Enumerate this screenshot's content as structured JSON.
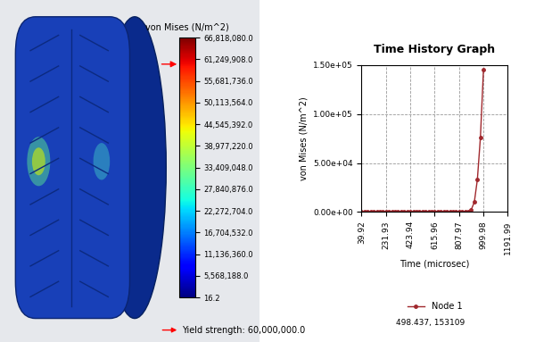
{
  "chart_data": [
    {
      "type": "image",
      "colorbar": {
        "title": "von Mises (N/m^2)",
        "range": [
          16.2,
          66818080.0
        ],
        "ticks": [
          {
            "value": 66818080.0,
            "label": "66,818,080.0"
          },
          {
            "value": 61249908.0,
            "label": "61,249,908.0"
          },
          {
            "value": 55681736.0,
            "label": "55,681,736.0"
          },
          {
            "value": 50113564.0,
            "label": "50,113,564.0"
          },
          {
            "value": 44545392.0,
            "label": "44,545,392.0"
          },
          {
            "value": 38977220.0,
            "label": "38,977,220.0"
          },
          {
            "value": 33409048.0,
            "label": "33,409,048.0"
          },
          {
            "value": 27840876.0,
            "label": "27,840,876.0"
          },
          {
            "value": 22272704.0,
            "label": "22,272,704.0"
          },
          {
            "value": 16704532.0,
            "label": "16,704,532.0"
          },
          {
            "value": 11136360.0,
            "label": "11,136,360.0"
          },
          {
            "value": 5568188.0,
            "label": "5,568,188.0"
          },
          {
            "value": 16.2,
            "label": "16.2"
          }
        ]
      },
      "annotations": [
        {
          "text": "Yield strength: 60,000,000.0",
          "value": 60000000
        }
      ]
    },
    {
      "type": "line",
      "title": "Time History Graph",
      "x_label": "Time (microsec)",
      "y_label": "von Mises (N/m^2)",
      "xlim": [
        39.92,
        1191.99
      ],
      "xticks": [
        39.92,
        231.93,
        423.94,
        615.96,
        807.97,
        999.98,
        1191.99
      ],
      "ylim": [
        0,
        150000
      ],
      "yticks": [
        {
          "value": 0,
          "label": "0.00e+00"
        },
        {
          "value": 50000,
          "label": "5.00e+04"
        },
        {
          "value": 100000,
          "label": "1.00e+05"
        },
        {
          "value": 150000,
          "label": "1.50e+05"
        }
      ],
      "grid": true,
      "legend": "upper center",
      "x": [
        39.92,
        63.92,
        87.92,
        111.92,
        135.92,
        159.92,
        183.92,
        207.92,
        231.92,
        255.92,
        279.92,
        303.92,
        327.92,
        351.92,
        375.92,
        399.92,
        423.92,
        447.92,
        471.92,
        495.92,
        519.92,
        543.92,
        567.92,
        591.92,
        615.92,
        639.92,
        663.92,
        687.92,
        711.92,
        735.92,
        759.92,
        783.92,
        807.92,
        831.92,
        855.92,
        879.92,
        903.92,
        927.92,
        951.92,
        975.92,
        999.92
      ],
      "series": [
        {
          "name": "Node 1",
          "color": "#a0282d",
          "marker": "o",
          "line_style": "solid",
          "values": [
            0,
            0,
            0,
            0,
            0,
            0,
            0,
            0,
            0,
            0,
            0,
            0,
            0,
            0,
            0,
            0,
            0,
            0,
            0,
            0,
            0,
            0,
            0,
            0,
            0,
            0,
            0,
            0,
            0,
            0,
            0,
            0,
            0,
            0,
            200,
            600,
            2500,
            10000,
            33000,
            76000,
            145000
          ]
        }
      ],
      "annotations": [
        {
          "text": "498.437, 153109"
        }
      ]
    }
  ]
}
